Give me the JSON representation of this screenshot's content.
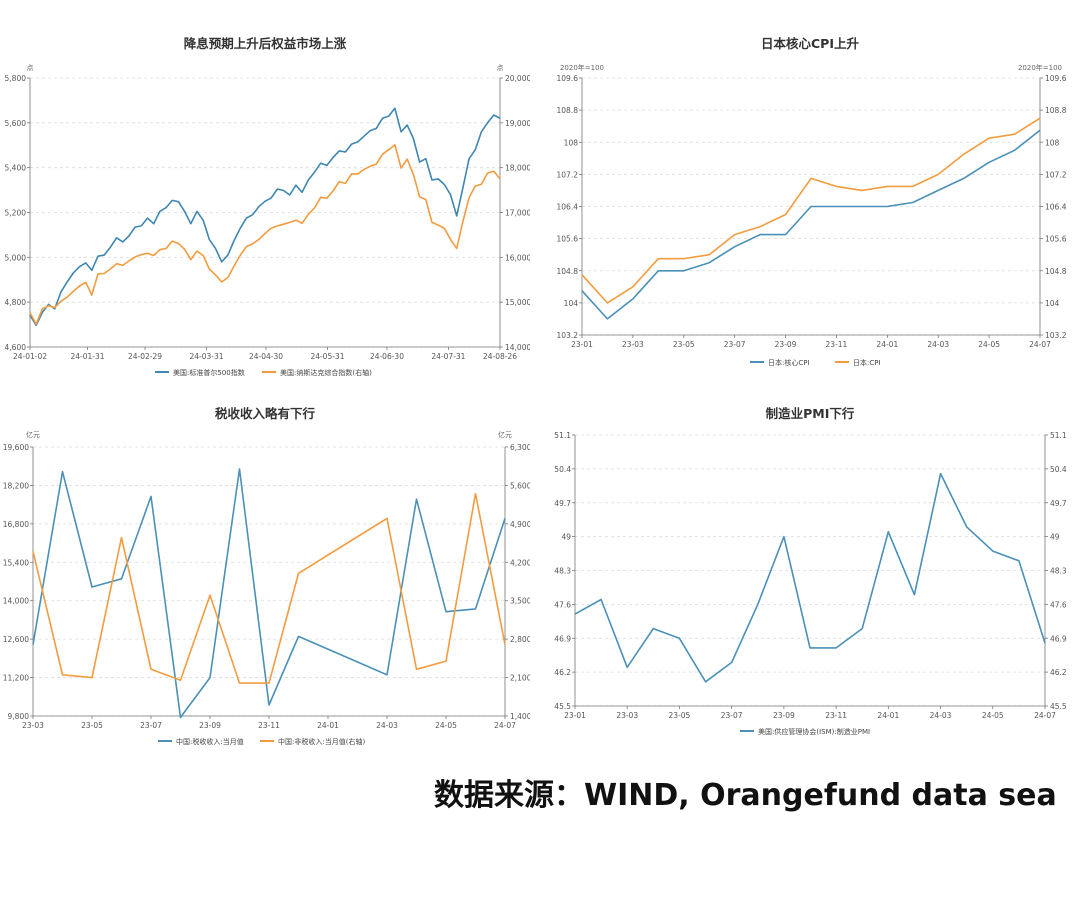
{
  "source_note": "数据来源：WIND, Orangefund data sea",
  "chart_data": [
    {
      "type": "line",
      "title": "降息预期上升后权益市场上涨",
      "left_unit": "点",
      "right_unit": "点",
      "x_ticks": [
        "24-01-02",
        "24-01-31",
        "24-02-29",
        "24-03-31",
        "24-04-30",
        "24-05-31",
        "24-06-30",
        "24-07-31",
        "24-08-26"
      ],
      "left_axis": {
        "min": 4600,
        "max": 5800,
        "ticks": [
          "4,600",
          "4,800",
          "5,000",
          "5,200",
          "5,400",
          "5,600",
          "5,800"
        ]
      },
      "right_axis": {
        "min": 14000,
        "max": 20000,
        "ticks": [
          "14,000",
          "15,000",
          "16,000",
          "17,000",
          "18,000",
          "19,000",
          "20,000"
        ]
      },
      "series": [
        {
          "name": "美国:标准普尔500指数",
          "color": "#3f86b2",
          "axis": "left",
          "values": [
            4742,
            4697,
            4755,
            4790,
            4770,
            4845,
            4890,
            4930,
            4958,
            4975,
            4942,
            5005,
            5010,
            5045,
            5087,
            5069,
            5095,
            5135,
            5140,
            5175,
            5150,
            5205,
            5222,
            5254,
            5248,
            5205,
            5150,
            5205,
            5165,
            5080,
            5040,
            4980,
            5010,
            5075,
            5130,
            5175,
            5190,
            5226,
            5250,
            5265,
            5305,
            5298,
            5278,
            5322,
            5290,
            5345,
            5380,
            5420,
            5410,
            5445,
            5475,
            5470,
            5505,
            5515,
            5540,
            5565,
            5575,
            5620,
            5630,
            5665,
            5560,
            5590,
            5530,
            5425,
            5440,
            5345,
            5350,
            5325,
            5280,
            5185,
            5310,
            5440,
            5480,
            5560,
            5600,
            5635,
            5620
          ]
        },
        {
          "name": "美国:纳斯达克综合指数(右轴)",
          "color": "#f39c3f",
          "axis": "right",
          "values": [
            14765,
            14510,
            14855,
            14920,
            14880,
            15020,
            15110,
            15240,
            15360,
            15440,
            15160,
            15630,
            15640,
            15740,
            15859,
            15820,
            15920,
            16010,
            16060,
            16090,
            16040,
            16170,
            16200,
            16360,
            16310,
            16180,
            15950,
            16140,
            16040,
            15740,
            15610,
            15450,
            15550,
            15810,
            16050,
            16240,
            16300,
            16400,
            16530,
            16650,
            16700,
            16740,
            16780,
            16830,
            16760,
            16960,
            17100,
            17340,
            17320,
            17480,
            17690,
            17650,
            17860,
            17860,
            17960,
            18030,
            18080,
            18300,
            18400,
            18510,
            17990,
            18190,
            17850,
            17350,
            17290,
            16780,
            16720,
            16650,
            16400,
            16200,
            16800,
            17330,
            17590,
            17630,
            17880,
            17920,
            17750
          ]
        }
      ]
    },
    {
      "type": "line",
      "title": "日本核心CPI上升",
      "left_unit": "2020年=100",
      "right_unit": "2020年=100",
      "x": [
        "23-01",
        "23-02",
        "23-03",
        "23-04",
        "23-05",
        "23-06",
        "23-07",
        "23-08",
        "23-09",
        "23-10",
        "23-11",
        "23-12",
        "24-01",
        "24-02",
        "24-03",
        "24-04",
        "24-05",
        "24-06",
        "24-07"
      ],
      "x_ticks": [
        "23-01",
        "23-03",
        "23-05",
        "23-07",
        "23-09",
        "23-11",
        "24-01",
        "24-03",
        "24-05",
        "24-07"
      ],
      "left_axis": {
        "min": 103.2,
        "max": 109.6,
        "ticks": [
          "103.2",
          "104",
          "104.8",
          "105.6",
          "106.4",
          "107.2",
          "108",
          "108.8",
          "109.6"
        ]
      },
      "right_axis": {
        "min": 103.2,
        "max": 109.6,
        "ticks": [
          "103.2",
          "104",
          "104.8",
          "105.6",
          "106.4",
          "107.2",
          "108",
          "108.8",
          "109.6"
        ]
      },
      "series": [
        {
          "name": "日本:核心CPI",
          "color": "#4a90b8",
          "axis": "left",
          "values": [
            104.3,
            103.6,
            104.1,
            104.8,
            104.8,
            105.0,
            105.4,
            105.7,
            105.7,
            106.4,
            106.4,
            106.4,
            106.4,
            106.5,
            106.8,
            107.1,
            107.5,
            107.8,
            108.3
          ]
        },
        {
          "name": "日本:CPI",
          "color": "#f39c3f",
          "axis": "right",
          "values": [
            104.7,
            104.0,
            104.4,
            105.1,
            105.1,
            105.2,
            105.7,
            105.9,
            106.2,
            107.1,
            106.9,
            106.8,
            106.9,
            106.9,
            107.2,
            107.7,
            108.1,
            108.2,
            108.6
          ]
        }
      ]
    },
    {
      "type": "line",
      "title": "税收收入略有下行",
      "left_unit": "亿元",
      "right_unit": "亿元",
      "x_ticks": [
        "23-03",
        "23-05",
        "23-07",
        "23-09",
        "23-11",
        "24-01",
        "24-03",
        "24-05",
        "24-07"
      ],
      "left_axis": {
        "min": 9800,
        "max": 19600,
        "ticks": [
          "9,800",
          "11,200",
          "12,600",
          "14,000",
          "15,400",
          "16,800",
          "18,200",
          "19,600"
        ]
      },
      "right_axis": {
        "min": 1400,
        "max": 6300,
        "ticks": [
          "1,400",
          "2,100",
          "2,800",
          "3,500",
          "4,200",
          "4,900",
          "5,600",
          "6,300"
        ]
      },
      "series": [
        {
          "name": "中国:税收收入:当月值",
          "color": "#4a90b8",
          "axis": "left",
          "points": [
            [
              "23-03",
              12400
            ],
            [
              "23-04",
              18700
            ],
            [
              "23-05",
              14500
            ],
            [
              "23-06",
              14800
            ],
            [
              "23-07",
              17800
            ],
            [
              "23-08",
              9750
            ],
            [
              "23-09",
              11200
            ],
            [
              "23-10",
              18800
            ],
            [
              "23-11",
              10200
            ],
            [
              "23-12",
              12700
            ],
            [
              "24-03",
              11300
            ],
            [
              "24-04",
              17700
            ],
            [
              "24-05",
              13600
            ],
            [
              "24-06",
              13700
            ],
            [
              "24-07",
              17000
            ]
          ]
        },
        {
          "name": "中国:非税收入:当月值(右轴)",
          "color": "#f39c3f",
          "axis": "right",
          "points": [
            [
              "23-03",
              4400
            ],
            [
              "23-04",
              2150
            ],
            [
              "23-05",
              2100
            ],
            [
              "23-06",
              4650
            ],
            [
              "23-07",
              2250
            ],
            [
              "23-08",
              2050
            ],
            [
              "23-09",
              3600
            ],
            [
              "23-10",
              2000
            ],
            [
              "23-11",
              2000
            ],
            [
              "23-12",
              4000
            ],
            [
              "24-03",
              5000
            ],
            [
              "24-04",
              2250
            ],
            [
              "24-05",
              2400
            ],
            [
              "24-06",
              5450
            ],
            [
              "24-07",
              2700
            ]
          ]
        }
      ]
    },
    {
      "type": "line",
      "title": "制造业PMI下行",
      "x": [
        "23-01",
        "23-02",
        "23-03",
        "23-04",
        "23-05",
        "23-06",
        "23-07",
        "23-08",
        "23-09",
        "23-10",
        "23-11",
        "23-12",
        "24-01",
        "24-02",
        "24-03",
        "24-04",
        "24-05",
        "24-06",
        "24-07"
      ],
      "x_ticks": [
        "23-01",
        "23-03",
        "23-05",
        "23-07",
        "23-09",
        "23-11",
        "24-01",
        "24-03",
        "24-05",
        "24-07"
      ],
      "left_axis": {
        "min": 45.5,
        "max": 51.1,
        "ticks": [
          "45.5",
          "46.2",
          "46.9",
          "47.6",
          "48.3",
          "49",
          "49.7",
          "50.4",
          "51.1"
        ]
      },
      "right_axis": {
        "min": 45.5,
        "max": 51.1,
        "ticks": [
          "45.5",
          "46.2",
          "46.9",
          "47.6",
          "48.3",
          "49",
          "49.7",
          "50.4",
          "51.1"
        ]
      },
      "series": [
        {
          "name": "美国:供应管理协会(ISM):制造业PMI",
          "color": "#4a90b8",
          "axis": "left",
          "values": [
            47.4,
            47.7,
            46.3,
            47.1,
            46.9,
            46.0,
            46.4,
            47.6,
            49.0,
            46.7,
            46.7,
            47.1,
            49.1,
            47.8,
            50.3,
            49.2,
            48.7,
            48.5,
            46.8
          ]
        }
      ]
    }
  ]
}
